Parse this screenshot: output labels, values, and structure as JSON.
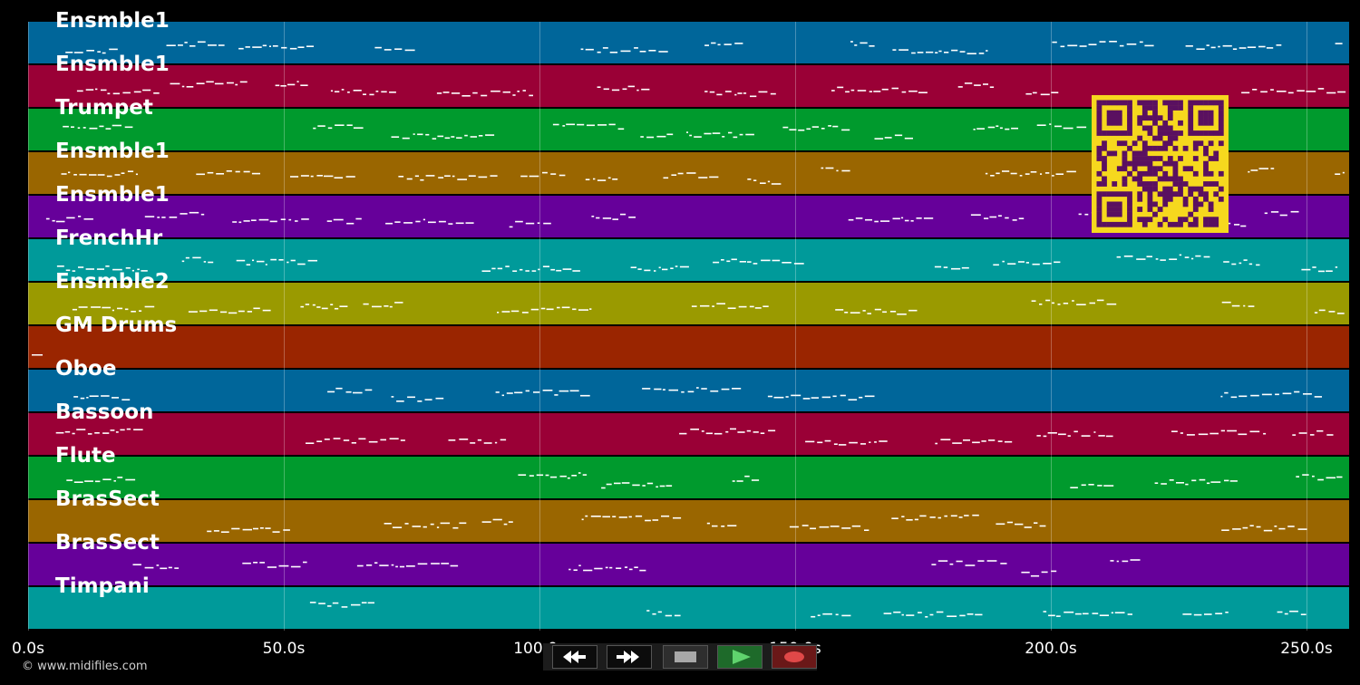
{
  "tracks": [
    {
      "name": "Ensmble1",
      "color": "#00669a"
    },
    {
      "name": "Ensmble1",
      "color": "#9a0036"
    },
    {
      "name": "Trumpet",
      "color": "#009a2d"
    },
    {
      "name": "Ensmble1",
      "color": "#9a6600"
    },
    {
      "name": "Ensmble1",
      "color": "#66009a"
    },
    {
      "name": "FrenchHr",
      "color": "#009a9a"
    },
    {
      "name": "Ensmble2",
      "color": "#9a9a00"
    },
    {
      "name": "GM Drums",
      "color": "#9a2500"
    },
    {
      "name": "Oboe",
      "color": "#00669a"
    },
    {
      "name": "Bassoon",
      "color": "#9a0036"
    },
    {
      "name": "Flute",
      "color": "#009a2d"
    },
    {
      "name": "BrasSect",
      "color": "#9a6600"
    },
    {
      "name": "BrasSect",
      "color": "#66009a"
    },
    {
      "name": "Timpani",
      "color": "#009a9a"
    }
  ],
  "timeline": {
    "ticks": [
      "0.0s",
      "50.0s",
      "100.0s",
      "150.0s",
      "200.0s",
      "250.0s"
    ]
  },
  "footer": {
    "copyright": "© www.midifiles.com"
  },
  "transport": {
    "buttons": [
      {
        "name": "rewind-button",
        "icon": "rewind-icon"
      },
      {
        "name": "fast-forward-button",
        "icon": "fast-forward-icon"
      },
      {
        "name": "stop-button",
        "icon": "stop-icon"
      },
      {
        "name": "play-button",
        "icon": "play-icon"
      },
      {
        "name": "record-button",
        "icon": "record-icon"
      }
    ]
  },
  "qr_code": {
    "icon": "qr-code-icon",
    "colors": {
      "fg": "#5a1060",
      "bg": "#f6d81e"
    }
  }
}
